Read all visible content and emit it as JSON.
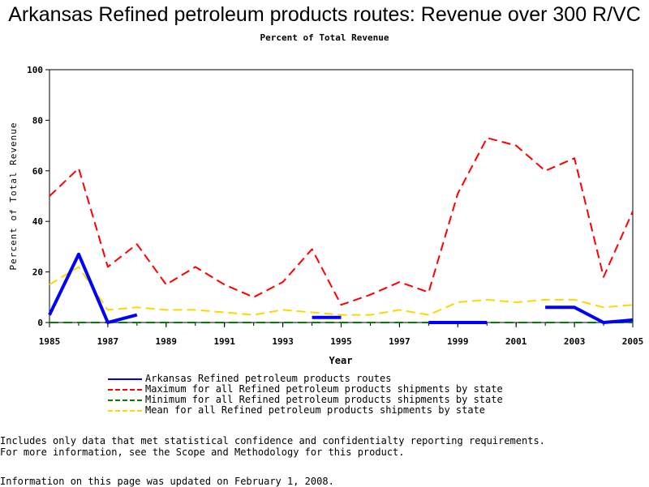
{
  "page": {
    "title": "Arkansas Refined petroleum products routes: Revenue over 300 R/VC",
    "subtitle": "Percent of Total Revenue",
    "note_line1": "Includes only data that met statistical confidence and confidentialty reporting requirements.",
    "note_line2": "For more information, see the Scope and Methodology for this product.",
    "updated": "Information on this page was updated on February 1, 2008."
  },
  "chart_data": {
    "type": "line",
    "title": "Arkansas Refined petroleum products routes: Revenue over 300 R/VC",
    "subtitle": "Percent of Total Revenue",
    "xlabel": "Year",
    "ylabel": "Percent of Total Revenue",
    "xlim": [
      1985,
      2005
    ],
    "ylim": [
      0,
      100
    ],
    "x_ticks": [
      1985,
      1987,
      1989,
      1991,
      1993,
      1995,
      1997,
      1999,
      2001,
      2003,
      2005
    ],
    "y_ticks": [
      0,
      20,
      40,
      60,
      80,
      100
    ],
    "grid": false,
    "legend_position": "bottom",
    "x": [
      1985,
      1986,
      1987,
      1988,
      1989,
      1990,
      1991,
      1992,
      1993,
      1994,
      1995,
      1996,
      1997,
      1998,
      1999,
      2000,
      2001,
      2002,
      2003,
      2004,
      2005
    ],
    "series": [
      {
        "name": "Arkansas Refined petroleum products routes",
        "color": "#0000ff",
        "dash": "solid",
        "values": [
          3,
          27,
          0,
          3,
          null,
          null,
          null,
          null,
          null,
          2,
          2,
          null,
          null,
          0,
          0,
          0,
          null,
          6,
          6,
          0,
          1
        ]
      },
      {
        "name": "Maximum for all Refined petroleum products shipments by state",
        "color": "#ff0000",
        "dash": "dashed",
        "values": [
          50,
          61,
          22,
          31,
          15,
          22,
          15,
          10,
          16,
          29,
          7,
          11,
          16,
          12,
          51,
          73,
          70,
          60,
          65,
          18,
          44
        ]
      },
      {
        "name": "Minimum for all Refined petroleum products shipments by state",
        "color": "#008000",
        "dash": "dashed",
        "values": [
          0,
          0,
          0,
          0,
          0,
          0,
          0,
          0,
          0,
          0,
          0,
          0,
          0,
          0,
          0,
          0,
          0,
          0,
          0,
          0,
          0
        ]
      },
      {
        "name": "Mean for all Refined petroleum products shipments by state",
        "color": "#ffd700",
        "dash": "dashed",
        "values": [
          15,
          22,
          5,
          6,
          5,
          5,
          4,
          3,
          5,
          4,
          3,
          3,
          5,
          3,
          8,
          9,
          8,
          9,
          9,
          6,
          7
        ]
      }
    ]
  }
}
